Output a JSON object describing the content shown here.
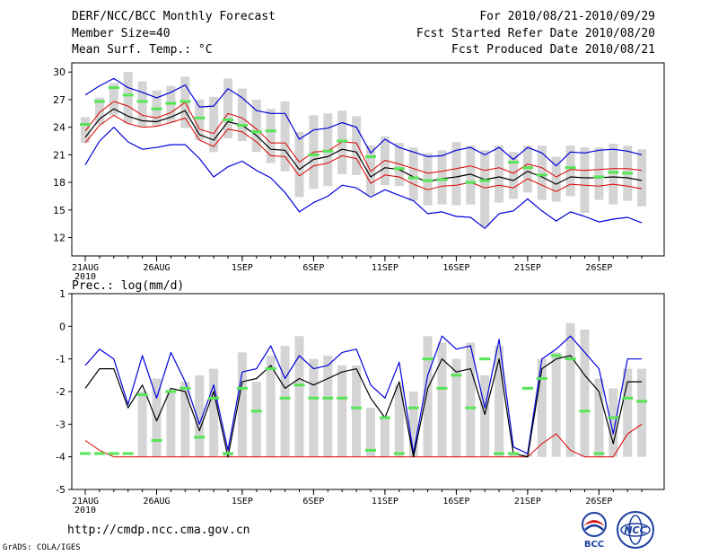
{
  "header": {
    "title": "DERF/NCC/BCC Monthly Forecast",
    "member_size": "Member Size=40",
    "variable_top": "Mean Surf. Temp.: °C",
    "period": "For 2010/08/21-2010/09/29",
    "started": "Fcst Started Refer Date 2010/08/20",
    "produced": "Fcst Produced Date 2010/08/21"
  },
  "footer": {
    "url": "http://cmdp.ncc.cma.gov.cn",
    "credit": "GrADS: COLA/IGES",
    "logo_left_text": "BCC",
    "logo_right_text": "NCC"
  },
  "colors": {
    "box": "#d4d4d4",
    "observed": "#55e555",
    "ensemble_max": "#0000dd",
    "ensemble_min": "#0000dd",
    "ensemble_mean": "#000000",
    "spread_band": "#dd0000"
  },
  "chart_data": [
    {
      "type": "line",
      "title": "Mean Surf. Temp.: °C",
      "ylim": [
        10,
        31
      ],
      "yticks": [
        12,
        15,
        18,
        21,
        24,
        27,
        30
      ],
      "x_day_count": 40,
      "xtick_days": [
        0,
        5,
        11,
        16,
        21,
        26,
        31,
        36
      ],
      "xtick_labels": [
        "21AUG",
        "26AUG",
        "1SEP",
        "6SEP",
        "11SEP",
        "16SEP",
        "21SEP",
        "26SEP"
      ],
      "x_year_label": "2010",
      "series": [
        {
          "name": "max",
          "values": [
            27.5,
            28.5,
            29.3,
            28.3,
            27.8,
            27.2,
            27.8,
            28.6,
            26.2,
            26.3,
            28.2,
            27.2,
            25.8,
            25.5,
            25.5,
            22.7,
            23.7,
            23.9,
            24.5,
            24.0,
            21.2,
            22.7,
            21.8,
            21.3,
            20.8,
            20.9,
            21.5,
            21.8,
            21.0,
            21.8,
            20.5,
            21.8,
            21.2,
            19.8,
            21.3,
            21.2,
            21.5,
            21.6,
            21.4,
            21.0
          ]
        },
        {
          "name": "upper",
          "values": [
            23.6,
            25.6,
            26.8,
            26.3,
            25.3,
            25.0,
            25.6,
            26.7,
            23.8,
            23.3,
            25.5,
            25.0,
            23.8,
            22.3,
            22.3,
            20.2,
            21.3,
            21.4,
            22.4,
            22.3,
            19.2,
            20.4,
            20.0,
            19.5,
            19.0,
            19.2,
            19.5,
            19.8,
            19.3,
            19.6,
            19.0,
            20.0,
            19.6,
            18.6,
            19.4,
            19.3,
            19.4,
            19.5,
            19.5,
            19.3
          ]
        },
        {
          "name": "mean",
          "values": [
            22.9,
            24.9,
            26.0,
            25.2,
            24.7,
            24.6,
            25.1,
            25.8,
            23.2,
            22.6,
            24.6,
            24.2,
            23.1,
            21.6,
            21.5,
            19.4,
            20.5,
            20.8,
            21.6,
            21.3,
            18.6,
            19.6,
            19.4,
            18.6,
            18.1,
            18.4,
            18.6,
            18.9,
            18.3,
            18.6,
            18.2,
            19.2,
            18.6,
            17.8,
            18.6,
            18.5,
            18.5,
            18.6,
            18.5,
            18.2
          ]
        },
        {
          "name": "lower",
          "values": [
            22.3,
            24.2,
            25.3,
            24.4,
            24.0,
            24.1,
            24.5,
            25.0,
            22.6,
            21.9,
            23.8,
            23.5,
            22.4,
            20.9,
            20.8,
            18.7,
            19.8,
            20.1,
            20.9,
            20.6,
            17.9,
            18.8,
            18.6,
            17.8,
            17.2,
            17.6,
            17.7,
            18.0,
            17.4,
            17.7,
            17.4,
            18.4,
            17.7,
            17.0,
            17.8,
            17.7,
            17.6,
            17.8,
            17.6,
            17.3
          ]
        },
        {
          "name": "min",
          "values": [
            19.9,
            22.5,
            24.0,
            22.4,
            21.6,
            21.8,
            22.1,
            22.1,
            20.6,
            18.6,
            19.7,
            20.3,
            19.3,
            18.5,
            16.9,
            14.8,
            15.8,
            16.5,
            17.7,
            17.4,
            16.4,
            17.2,
            16.6,
            16.0,
            14.6,
            14.8,
            14.3,
            14.2,
            13.0,
            14.6,
            14.9,
            16.2,
            14.9,
            13.8,
            14.8,
            14.3,
            13.7,
            14.0,
            14.2,
            13.6
          ]
        },
        {
          "name": "observed",
          "values": [
            24.3,
            26.8,
            28.3,
            27.5,
            26.8,
            26.0,
            26.6,
            26.8,
            25.0,
            null,
            24.8,
            24.2,
            23.5,
            23.6,
            null,
            null,
            21.0,
            21.4,
            22.5,
            null,
            20.8,
            null,
            19.5,
            18.5,
            18.2,
            18.3,
            null,
            18.0,
            18.2,
            null,
            20.2,
            19.6,
            18.8,
            null,
            19.6,
            null,
            18.6,
            19.1,
            19.0,
            null
          ]
        },
        {
          "name": "box_high",
          "values": [
            25.1,
            27.2,
            28.8,
            30.0,
            29.0,
            28.0,
            28.5,
            29.5,
            27.0,
            27.3,
            29.3,
            28.2,
            27.0,
            26.0,
            26.8,
            23.5,
            25.3,
            25.5,
            25.8,
            25.2,
            22.0,
            23.0,
            22.3,
            21.8,
            21.2,
            21.5,
            22.4,
            22.0,
            21.5,
            22.0,
            21.3,
            22.0,
            22.0,
            20.8,
            22.0,
            21.8,
            21.8,
            22.2,
            22.0,
            21.6
          ]
        },
        {
          "name": "box_low",
          "values": [
            22.3,
            24.3,
            25.3,
            24.4,
            24.0,
            24.1,
            24.5,
            23.9,
            22.6,
            21.3,
            22.8,
            22.5,
            21.3,
            20.1,
            19.2,
            16.4,
            17.3,
            17.6,
            18.9,
            18.8,
            16.6,
            17.7,
            17.6,
            16.0,
            15.5,
            15.6,
            15.5,
            15.6,
            13.2,
            15.8,
            16.2,
            16.9,
            16.1,
            15.9,
            16.5,
            14.7,
            16.1,
            15.6,
            16.0,
            15.4
          ]
        }
      ]
    },
    {
      "type": "line",
      "title": "Prec.: log(mm/d)",
      "ylim": [
        -5,
        1
      ],
      "yticks": [
        -5,
        -4,
        -3,
        -2,
        -1,
        0,
        1
      ],
      "xtick_labels": [
        "21AUG",
        "26AUG",
        "1SEP",
        "6SEP",
        "11SEP",
        "16SEP",
        "21SEP",
        "26SEP"
      ],
      "x_year_label": "2010",
      "series": [
        {
          "name": "max",
          "values": [
            -1.2,
            -0.7,
            -1.0,
            -2.4,
            -0.9,
            -2.2,
            -0.8,
            -1.7,
            -3.0,
            -1.8,
            -3.8,
            -1.4,
            -1.3,
            -0.6,
            -1.6,
            -0.9,
            -1.3,
            -1.2,
            -0.8,
            -0.7,
            -1.8,
            -2.2,
            -1.1,
            -3.9,
            -1.5,
            -0.3,
            -0.7,
            -0.6,
            -2.5,
            -0.4,
            -3.7,
            -3.9,
            -1.0,
            -0.7,
            -0.3,
            -0.8,
            -1.3,
            -3.3,
            -1.0,
            -1.0
          ]
        },
        {
          "name": "mean",
          "values": [
            -1.9,
            -1.3,
            -1.3,
            -2.5,
            -1.8,
            -2.9,
            -1.9,
            -2.0,
            -3.2,
            -2.0,
            -4.0,
            -1.7,
            -1.6,
            -1.2,
            -1.9,
            -1.6,
            -1.8,
            -1.6,
            -1.4,
            -1.3,
            -2.2,
            -2.8,
            -1.7,
            -4.0,
            -1.9,
            -1.0,
            -1.4,
            -1.3,
            -2.7,
            -1.0,
            -3.9,
            -4.0,
            -1.3,
            -1.0,
            -0.9,
            -1.5,
            -2.0,
            -3.6,
            -1.7,
            -1.7
          ]
        },
        {
          "name": "spread_red",
          "values": [
            -3.5,
            -3.8,
            -4.0,
            -4.0,
            -4.0,
            -4.0,
            -4.0,
            -4.0,
            -4.0,
            -4.0,
            -4.0,
            -4.0,
            -4.0,
            -4.0,
            -4.0,
            -4.0,
            -4.0,
            -4.0,
            -4.0,
            -4.0,
            -4.0,
            -4.0,
            -4.0,
            -4.0,
            -4.0,
            -4.0,
            -4.0,
            -4.0,
            -4.0,
            -4.0,
            -4.0,
            -4.0,
            -3.6,
            -3.3,
            -3.8,
            -4.0,
            -4.0,
            -4.0,
            -3.3,
            -3.0
          ]
        },
        {
          "name": "observed",
          "values": [
            -3.9,
            -3.9,
            -3.9,
            -3.9,
            -2.1,
            -3.5,
            -2.0,
            -1.9,
            -3.4,
            -2.2,
            -3.9,
            -1.9,
            -2.6,
            -1.3,
            -2.2,
            -1.8,
            -2.2,
            -2.2,
            -2.2,
            -2.5,
            -3.8,
            -2.8,
            -3.9,
            -2.5,
            -1.0,
            -1.9,
            -1.5,
            -2.5,
            -1.0,
            -3.9,
            -3.9,
            -1.9,
            -1.6,
            -0.9,
            -1.0,
            -2.6,
            -3.9,
            -2.8,
            -2.2,
            -2.3
          ]
        },
        {
          "name": "box_high",
          "values": [
            null,
            null,
            null,
            null,
            -2.0,
            -1.6,
            -2.0,
            -1.7,
            -1.5,
            -1.3,
            -3.9,
            -0.8,
            -1.7,
            -0.9,
            -0.6,
            -0.3,
            -1.0,
            -0.9,
            -1.2,
            -1.2,
            -2.5,
            -2.8,
            -1.8,
            -2.0,
            -0.3,
            -0.5,
            -1.0,
            -0.5,
            -1.5,
            -0.6,
            -3.9,
            -3.9,
            -1.0,
            -0.8,
            0.1,
            -0.1,
            -1.6,
            -1.9,
            -1.3,
            -1.3
          ]
        },
        {
          "name": "box_low",
          "values": [
            null,
            null,
            null,
            null,
            -4.0,
            -4.0,
            -4.0,
            -4.0,
            -4.0,
            -4.0,
            -4.0,
            -4.0,
            -4.0,
            -4.0,
            -4.0,
            -4.0,
            -4.0,
            -4.0,
            -4.0,
            -4.0,
            -4.0,
            -4.0,
            -4.0,
            -4.0,
            -4.0,
            -4.0,
            -4.0,
            -4.0,
            -4.0,
            -4.0,
            -4.0,
            -4.0,
            -4.0,
            -4.0,
            -4.0,
            -4.0,
            -4.0,
            -4.0,
            -4.0,
            -4.0
          ]
        }
      ]
    }
  ]
}
